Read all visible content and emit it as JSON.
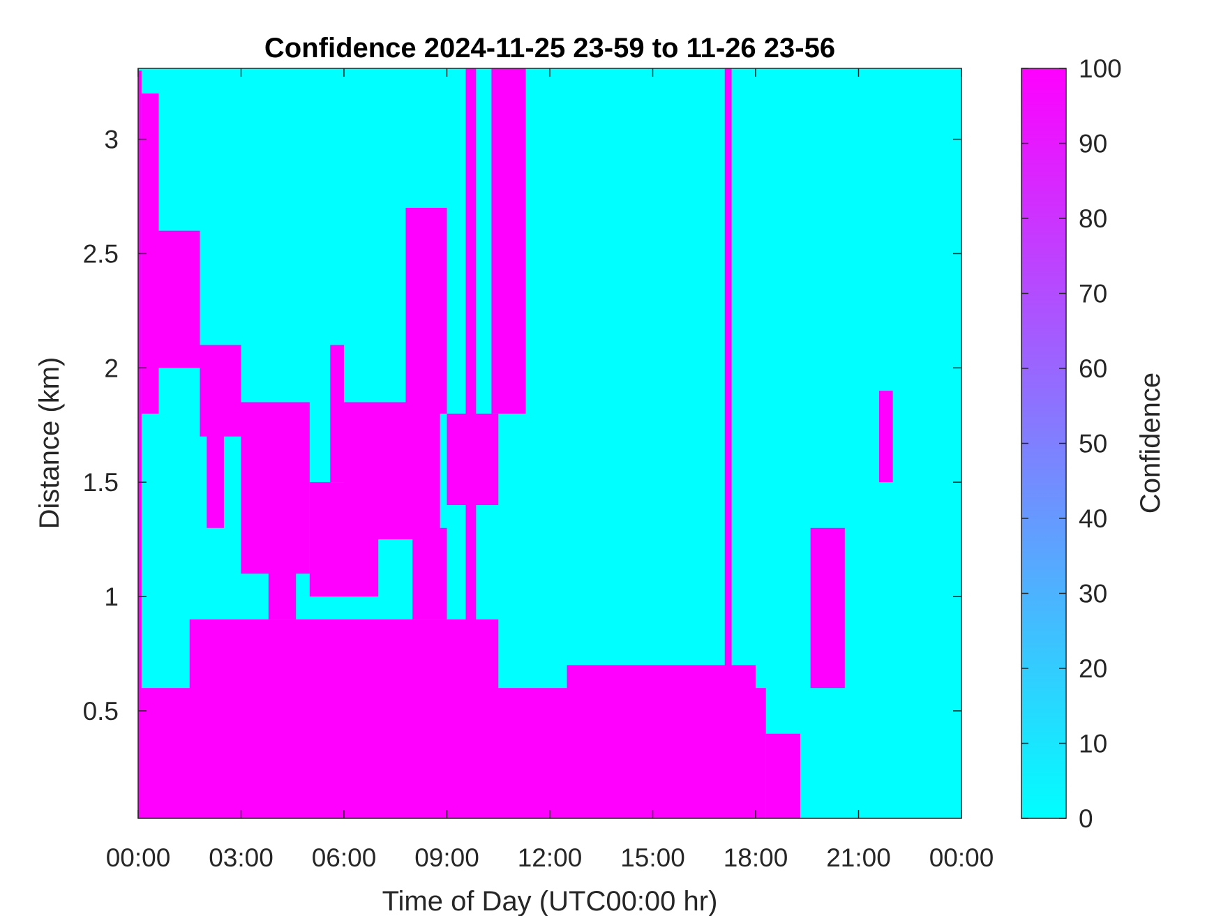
{
  "chart_data": {
    "type": "heatmap",
    "title": "Confidence 2024-11-25 23-59 to 11-26 23-56",
    "xlabel": "Time of Day (UTC00:00 hr)",
    "ylabel": "Distance (km)",
    "colorbar_label": "Confidence",
    "xlim": [
      0,
      24
    ],
    "ylim": [
      0.03,
      3.31
    ],
    "clim": [
      0,
      100
    ],
    "x_ticks": [
      {
        "value": 0,
        "label": "00:00"
      },
      {
        "value": 3,
        "label": "03:00"
      },
      {
        "value": 6,
        "label": "06:00"
      },
      {
        "value": 9,
        "label": "09:00"
      },
      {
        "value": 12,
        "label": "12:00"
      },
      {
        "value": 15,
        "label": "15:00"
      },
      {
        "value": 18,
        "label": "18:00"
      },
      {
        "value": 21,
        "label": "21:00"
      },
      {
        "value": 24,
        "label": "00:00"
      }
    ],
    "y_ticks": [
      {
        "value": 0.5,
        "label": "0.5"
      },
      {
        "value": 1,
        "label": "1"
      },
      {
        "value": 1.5,
        "label": "1.5"
      },
      {
        "value": 2,
        "label": "2"
      },
      {
        "value": 2.5,
        "label": "2.5"
      },
      {
        "value": 3,
        "label": "3"
      }
    ],
    "colorbar_ticks": [
      {
        "value": 0,
        "label": "0"
      },
      {
        "value": 10,
        "label": "10"
      },
      {
        "value": 20,
        "label": "20"
      },
      {
        "value": 30,
        "label": "30"
      },
      {
        "value": 40,
        "label": "40"
      },
      {
        "value": 50,
        "label": "50"
      },
      {
        "value": 60,
        "label": "60"
      },
      {
        "value": 70,
        "label": "70"
      },
      {
        "value": 80,
        "label": "80"
      },
      {
        "value": 90,
        "label": "90"
      },
      {
        "value": 100,
        "label": "100"
      }
    ],
    "colormap": {
      "low": "#00ffff",
      "high": "#ff00ff"
    },
    "background_value": 0,
    "high_confidence_regions": [
      {
        "x": [
          0.0,
          0.1
        ],
        "y": [
          0.03,
          3.3
        ],
        "value": 100
      },
      {
        "x": [
          0.1,
          0.6
        ],
        "y": [
          1.8,
          3.2
        ],
        "value": 100
      },
      {
        "x": [
          0.6,
          1.8
        ],
        "y": [
          2.0,
          2.6
        ],
        "value": 100
      },
      {
        "x": [
          1.8,
          3.0
        ],
        "y": [
          1.7,
          2.1
        ],
        "value": 100
      },
      {
        "x": [
          2.0,
          2.5
        ],
        "y": [
          1.3,
          2.0
        ],
        "value": 100
      },
      {
        "x": [
          3.0,
          5.0
        ],
        "y": [
          1.1,
          1.85
        ],
        "value": 100
      },
      {
        "x": [
          3.8,
          4.6
        ],
        "y": [
          0.9,
          1.5
        ],
        "value": 100
      },
      {
        "x": [
          5.0,
          7.0
        ],
        "y": [
          1.0,
          1.5
        ],
        "value": 100
      },
      {
        "x": [
          5.6,
          6.0
        ],
        "y": [
          1.5,
          2.1
        ],
        "value": 100
      },
      {
        "x": [
          6.0,
          8.8
        ],
        "y": [
          1.25,
          1.85
        ],
        "value": 100
      },
      {
        "x": [
          7.8,
          9.0
        ],
        "y": [
          1.8,
          2.7
        ],
        "value": 100
      },
      {
        "x": [
          8.0,
          9.0
        ],
        "y": [
          0.9,
          1.3
        ],
        "value": 100
      },
      {
        "x": [
          9.0,
          10.5
        ],
        "y": [
          1.4,
          1.8
        ],
        "value": 100
      },
      {
        "x": [
          9.55,
          9.85
        ],
        "y": [
          0.03,
          3.31
        ],
        "value": 100
      },
      {
        "x": [
          10.3,
          11.3
        ],
        "y": [
          1.8,
          3.31
        ],
        "value": 100
      },
      {
        "x": [
          10.5,
          10.65
        ],
        "y": [
          2.8,
          3.31
        ],
        "value": 100
      },
      {
        "x": [
          17.1,
          17.3
        ],
        "y": [
          0.03,
          3.31
        ],
        "value": 100
      },
      {
        "x": [
          0.0,
          18.3
        ],
        "y": [
          0.03,
          0.6
        ],
        "value": 100
      },
      {
        "x": [
          1.5,
          10.5
        ],
        "y": [
          0.4,
          0.9
        ],
        "value": 100
      },
      {
        "x": [
          11.0,
          13.5
        ],
        "y": [
          0.3,
          0.5
        ],
        "value": 100
      },
      {
        "x": [
          12.5,
          18.0
        ],
        "y": [
          0.3,
          0.7
        ],
        "value": 100
      },
      {
        "x": [
          18.3,
          19.3
        ],
        "y": [
          0.03,
          0.4
        ],
        "value": 100
      },
      {
        "x": [
          19.6,
          20.6
        ],
        "y": [
          0.6,
          1.3
        ],
        "value": 100
      },
      {
        "x": [
          21.6,
          22.0
        ],
        "y": [
          1.5,
          1.9
        ],
        "value": 100
      }
    ]
  }
}
